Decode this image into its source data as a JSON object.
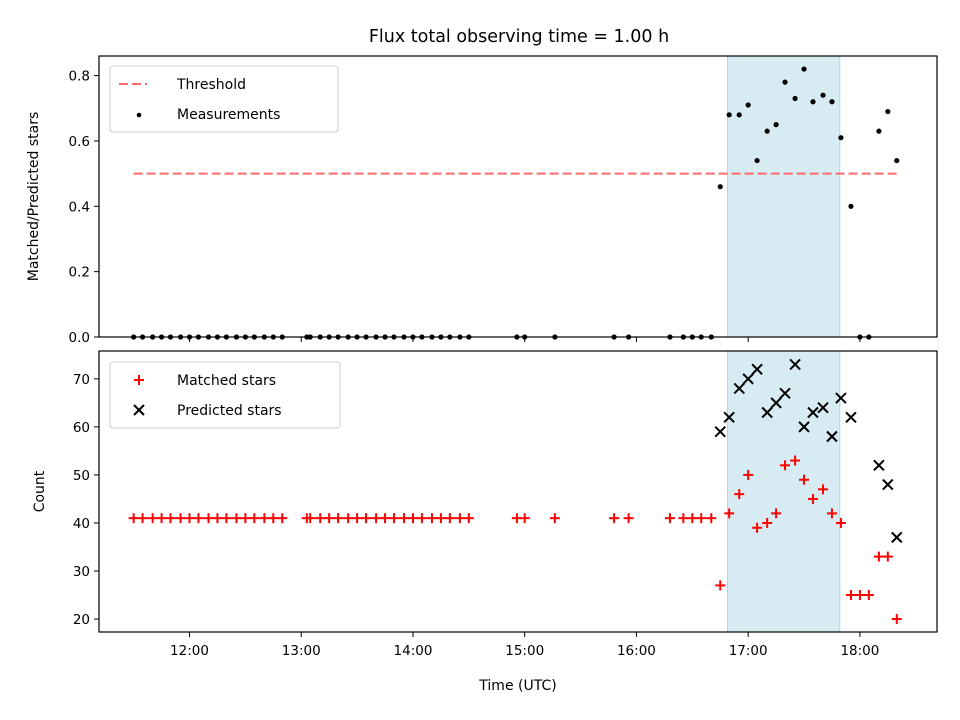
{
  "title": "Flux total observing time = 1.00 h",
  "colors": {
    "threshold": "#ff6b6b",
    "measurement": "#000000",
    "matched": "#ff0000",
    "predicted": "#000000",
    "highlight": "#add8e6"
  },
  "chart_data": [
    {
      "type": "scatter",
      "ylabel": "Matched/Predicted stars",
      "xlim": [
        11.19,
        18.69
      ],
      "ylim": [
        0,
        0.86
      ],
      "yticks": [
        0,
        0.2,
        0.4,
        0.6,
        0.8
      ],
      "ytick_labels": [
        "0.0",
        "0.2",
        "0.4",
        "0.6",
        "0.8"
      ],
      "highlight_span": [
        16.815,
        17.82
      ],
      "legend": {
        "placement": "top-left",
        "entries": [
          "Threshold",
          "Measurements"
        ]
      },
      "threshold": {
        "name": "Threshold",
        "value": 0.5,
        "x_range": [
          11.5,
          18.33
        ],
        "style": "dashed"
      },
      "series": [
        {
          "name": "Measurements",
          "marker": "dot",
          "x": [
            11.5,
            11.58,
            11.67,
            11.75,
            11.83,
            11.92,
            12.0,
            12.08,
            12.17,
            12.25,
            12.33,
            12.42,
            12.5,
            12.58,
            12.67,
            12.75,
            12.83,
            13.05,
            13.08,
            13.17,
            13.25,
            13.33,
            13.42,
            13.5,
            13.58,
            13.67,
            13.75,
            13.83,
            13.92,
            14.0,
            14.08,
            14.17,
            14.25,
            14.33,
            14.42,
            14.5,
            14.93,
            15.0,
            15.27,
            15.8,
            15.93,
            16.3,
            16.42,
            16.5,
            16.58,
            16.67,
            16.75,
            16.83,
            16.92,
            17.0,
            17.08,
            17.17,
            17.25,
            17.33,
            17.42,
            17.5,
            17.58,
            17.67,
            17.75,
            17.83,
            17.92,
            18.0,
            18.08,
            18.17,
            18.25,
            18.33
          ],
          "y": [
            0,
            0,
            0,
            0,
            0,
            0,
            0,
            0,
            0,
            0,
            0,
            0,
            0,
            0,
            0,
            0,
            0,
            0,
            0,
            0,
            0,
            0,
            0,
            0,
            0,
            0,
            0,
            0,
            0,
            0,
            0,
            0,
            0,
            0,
            0,
            0,
            0,
            0,
            0,
            0,
            0,
            0,
            0,
            0,
            0,
            0,
            0.46,
            0.68,
            0.68,
            0.71,
            0.54,
            0.63,
            0.65,
            0.78,
            0.73,
            0.82,
            0.72,
            0.74,
            0.72,
            0.61,
            0.4,
            0,
            0,
            0.63,
            0.69,
            0.54
          ]
        }
      ]
    },
    {
      "type": "scatter",
      "xlabel": "Time (UTC)",
      "ylabel": "Count",
      "xlim": [
        11.19,
        18.69
      ],
      "ylim": [
        17.3,
        75.8
      ],
      "xticks": [
        12,
        13,
        14,
        15,
        16,
        17,
        18
      ],
      "xtick_labels": [
        "12:00",
        "13:00",
        "14:00",
        "15:00",
        "16:00",
        "17:00",
        "18:00"
      ],
      "yticks": [
        20,
        30,
        40,
        50,
        60,
        70
      ],
      "ytick_labels": [
        "20",
        "30",
        "40",
        "50",
        "60",
        "70"
      ],
      "highlight_span": [
        16.815,
        17.82
      ],
      "legend": {
        "placement": "top-left",
        "entries": [
          "Matched stars",
          "Predicted stars"
        ]
      },
      "series": [
        {
          "name": "Matched stars",
          "marker": "plus",
          "x": [
            11.5,
            11.58,
            11.67,
            11.75,
            11.83,
            11.92,
            12.0,
            12.08,
            12.17,
            12.25,
            12.33,
            12.42,
            12.5,
            12.58,
            12.67,
            12.75,
            12.83,
            13.05,
            13.08,
            13.17,
            13.25,
            13.33,
            13.42,
            13.5,
            13.58,
            13.67,
            13.75,
            13.83,
            13.92,
            14.0,
            14.08,
            14.17,
            14.25,
            14.33,
            14.42,
            14.5,
            14.93,
            15.0,
            15.27,
            15.8,
            15.93,
            16.3,
            16.42,
            16.5,
            16.58,
            16.67,
            16.75,
            16.83,
            16.92,
            17.0,
            17.08,
            17.17,
            17.25,
            17.33,
            17.42,
            17.5,
            17.58,
            17.67,
            17.75,
            17.83,
            17.92,
            18.0,
            18.08,
            18.17,
            18.25,
            18.33
          ],
          "y": [
            41,
            41,
            41,
            41,
            41,
            41,
            41,
            41,
            41,
            41,
            41,
            41,
            41,
            41,
            41,
            41,
            41,
            41,
            41,
            41,
            41,
            41,
            41,
            41,
            41,
            41,
            41,
            41,
            41,
            41,
            41,
            41,
            41,
            41,
            41,
            41,
            41,
            41,
            41,
            41,
            41,
            41,
            41,
            41,
            41,
            41,
            27,
            42,
            46,
            50,
            39,
            40,
            42,
            52,
            53,
            49,
            45,
            47,
            42,
            40,
            25,
            25,
            25,
            33,
            33,
            20
          ]
        },
        {
          "name": "Predicted stars",
          "marker": "x",
          "x": [
            16.75,
            16.83,
            16.92,
            17.0,
            17.08,
            17.17,
            17.25,
            17.33,
            17.42,
            17.5,
            17.58,
            17.67,
            17.75,
            17.83,
            17.92,
            18.17,
            18.25,
            18.33
          ],
          "y": [
            59,
            62,
            68,
            70,
            72,
            63,
            65,
            67,
            73,
            60,
            63,
            64,
            58,
            66,
            62,
            52,
            48,
            37
          ]
        }
      ]
    }
  ]
}
